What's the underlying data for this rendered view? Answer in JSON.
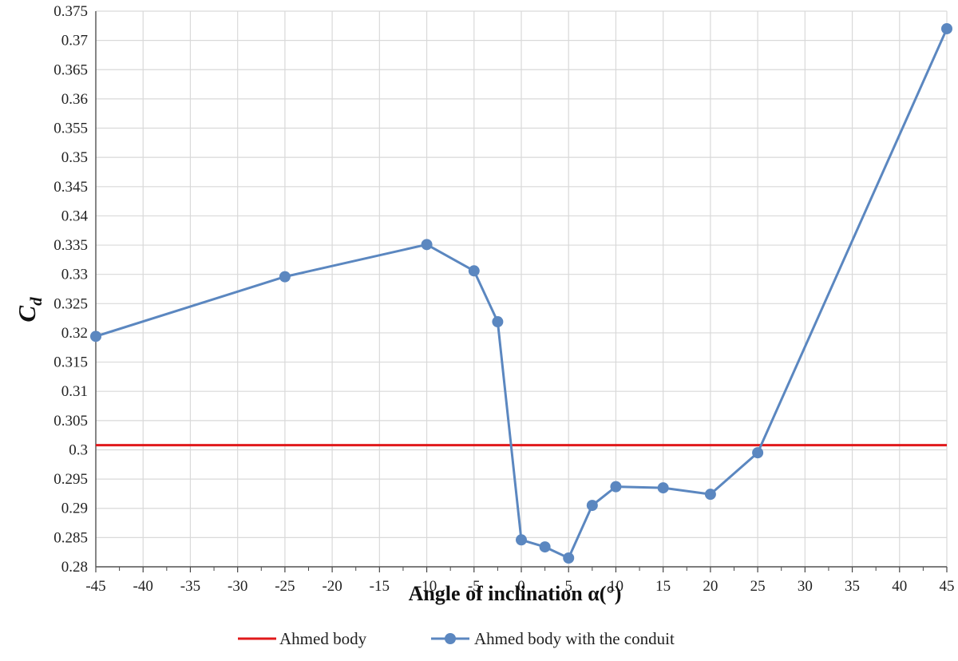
{
  "chart_data": {
    "type": "line",
    "title": "",
    "xlabel": "Angle of inclination α(°)",
    "ylabel": "C",
    "ylabel_sub": "d",
    "xlim": [
      -45,
      45
    ],
    "ylim": [
      0.28,
      0.375
    ],
    "x_ticks": [
      "-45",
      "-40",
      "-35",
      "-30",
      "-25",
      "-20",
      "-15",
      "-10",
      "-5",
      "0",
      "5",
      "10",
      "15",
      "20",
      "25",
      "30",
      "35",
      "40",
      "45"
    ],
    "y_ticks": [
      "0.28",
      "0.285",
      "0.29",
      "0.295",
      "0.3",
      "0.305",
      "0.31",
      "0.315",
      "0.32",
      "0.325",
      "0.33",
      "0.335",
      "0.34",
      "0.345",
      "0.35",
      "0.355",
      "0.36",
      "0.365",
      "0.37",
      "0.375"
    ],
    "grid": true,
    "legend_position": "bottom",
    "series": [
      {
        "name": "Ahmed body",
        "color": "#e0191b",
        "marker": "none",
        "x": [
          -45,
          45
        ],
        "y": [
          0.3008,
          0.3008
        ]
      },
      {
        "name": "Ahmed body with the conduit",
        "color": "#5b87c0",
        "marker": "circle",
        "x": [
          -45,
          -25,
          -10,
          -5,
          -2.5,
          0,
          2.5,
          5,
          7.5,
          10,
          15,
          20,
          25,
          45
        ],
        "y": [
          0.3194,
          0.3296,
          0.3351,
          0.3306,
          0.3219,
          0.2846,
          0.2834,
          0.2815,
          0.2905,
          0.2937,
          0.2935,
          0.2924,
          0.2995,
          0.372
        ]
      }
    ]
  }
}
